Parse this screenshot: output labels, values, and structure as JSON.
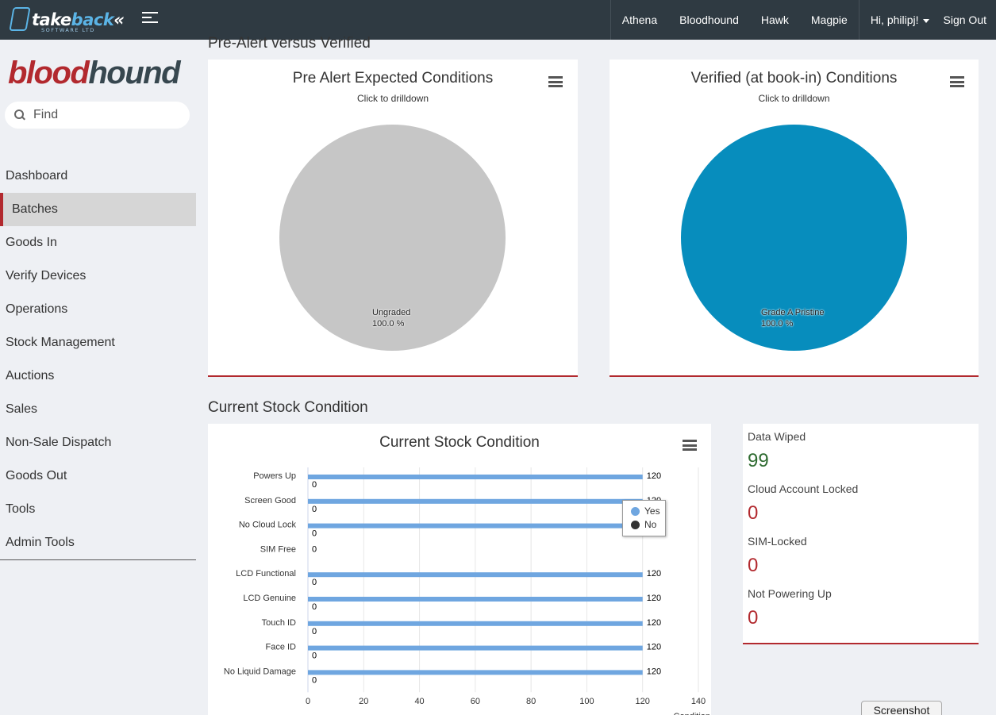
{
  "topbar": {
    "logo_take": "take",
    "logo_back": "back",
    "logo_sub": "SOFTWARE LTD",
    "nav": [
      "Athena",
      "Bloodhound",
      "Hawk",
      "Magpie"
    ],
    "user": "Hi, philipj!",
    "signout": "Sign Out"
  },
  "sidebar": {
    "brand_part1": "blood",
    "brand_part2": "hound",
    "search_placeholder": "Find",
    "items": [
      {
        "label": "Dashboard",
        "active": false
      },
      {
        "label": "Batches",
        "active": true
      },
      {
        "label": "Goods In",
        "active": false
      },
      {
        "label": "Verify Devices",
        "active": false
      },
      {
        "label": "Operations",
        "active": false
      },
      {
        "label": "Stock Management",
        "active": false
      },
      {
        "label": "Auctions",
        "active": false
      },
      {
        "label": "Sales",
        "active": false
      },
      {
        "label": "Non-Sale Dispatch",
        "active": false
      },
      {
        "label": "Goods Out",
        "active": false
      },
      {
        "label": "Tools",
        "active": false
      },
      {
        "label": "Admin Tools",
        "active": false
      }
    ]
  },
  "sections": {
    "pre_alert": "Pre-Alert versus Verified",
    "current_stock": "Current Stock Condition"
  },
  "pie_left": {
    "title": "Pre Alert Expected Conditions",
    "subtitle": "Click to drilldown",
    "slice_name": "Ungraded",
    "slice_pct": "100.0 %",
    "color": "#c6c6c6"
  },
  "pie_right": {
    "title": "Verified (at book-in) Conditions",
    "subtitle": "Click to drilldown",
    "slice_name": "Grade A Pristine",
    "slice_pct": "100.0 %",
    "color": "#078dbd"
  },
  "stats": [
    {
      "label": "Data Wiped",
      "value": "99",
      "color": "#2e6b30"
    },
    {
      "label": "Cloud Account Locked",
      "value": "0",
      "color": "#b2292e"
    },
    {
      "label": "SIM-Locked",
      "value": "0",
      "color": "#b2292e"
    },
    {
      "label": "Not Powering Up",
      "value": "0",
      "color": "#b2292e"
    }
  ],
  "chart_data": {
    "type": "bar",
    "orientation": "horizontal",
    "title": "Current Stock Condition",
    "xlabel": "Condition",
    "categories": [
      "Powers Up",
      "Screen Good",
      "No Cloud Lock",
      "SIM Free",
      "LCD Functional",
      "LCD Genuine",
      "Touch ID",
      "Face ID",
      "No Liquid Damage"
    ],
    "series": [
      {
        "name": "Yes",
        "color": "#6fa6e0",
        "values": [
          120,
          120,
          120,
          0,
          120,
          120,
          120,
          120,
          120
        ]
      },
      {
        "name": "No",
        "color": "#333333",
        "values": [
          0,
          0,
          0,
          0,
          0,
          0,
          0,
          0,
          0
        ]
      }
    ],
    "xlim": [
      0,
      140
    ],
    "xticks": [
      0,
      20,
      40,
      60,
      80,
      100,
      120,
      140
    ],
    "grid": true,
    "legend": "top-right"
  },
  "screenshot_button": "Screenshot"
}
